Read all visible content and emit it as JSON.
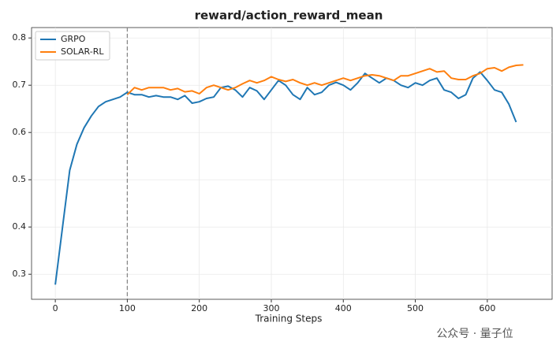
{
  "chart_data": {
    "type": "line",
    "title": "reward/action_reward_mean",
    "x_label": "Training Steps",
    "watermark": "公众号 · 量子位",
    "x": [
      0,
      10,
      20,
      30,
      40,
      50,
      60,
      70,
      80,
      90,
      100,
      110,
      120,
      130,
      140,
      150,
      160,
      170,
      180,
      190,
      200,
      210,
      220,
      230,
      240,
      250,
      260,
      270,
      280,
      290,
      300,
      310,
      320,
      330,
      340,
      350,
      360,
      370,
      380,
      390,
      400,
      410,
      420,
      430,
      440,
      450,
      460,
      470,
      480,
      490,
      500,
      510,
      520,
      530,
      540,
      550,
      560,
      570,
      580,
      590,
      600,
      610,
      620,
      630,
      640,
      650
    ],
    "series": [
      {
        "name": "GRPO",
        "color": "#1f77b4",
        "values": [
          0.278,
          0.4,
          0.52,
          0.575,
          0.61,
          0.635,
          0.655,
          0.665,
          0.67,
          0.675,
          0.685,
          0.68,
          0.68,
          0.675,
          0.678,
          0.675,
          0.675,
          0.67,
          0.678,
          0.662,
          0.665,
          0.672,
          0.675,
          0.695,
          0.698,
          0.69,
          0.675,
          0.695,
          0.688,
          0.67,
          0.69,
          0.71,
          0.7,
          0.68,
          0.67,
          0.695,
          0.68,
          0.685,
          0.7,
          0.706,
          0.7,
          0.69,
          0.705,
          0.725,
          0.715,
          0.705,
          0.715,
          0.71,
          0.7,
          0.695,
          0.705,
          0.7,
          0.71,
          0.715,
          0.69,
          0.685,
          0.672,
          0.68,
          0.715,
          0.728,
          0.71,
          0.69,
          0.685,
          0.66,
          0.622,
          null
        ]
      },
      {
        "name": "SOLAR-RL",
        "color": "#ff7f0e",
        "values": [
          null,
          null,
          null,
          null,
          null,
          null,
          null,
          null,
          null,
          null,
          0.68,
          0.695,
          0.69,
          0.695,
          0.695,
          0.695,
          0.69,
          0.693,
          0.686,
          0.688,
          0.682,
          0.695,
          0.7,
          0.695,
          0.69,
          0.695,
          0.703,
          0.71,
          0.705,
          0.71,
          0.718,
          0.712,
          0.708,
          0.712,
          0.705,
          0.7,
          0.705,
          0.7,
          0.705,
          0.71,
          0.715,
          0.71,
          0.715,
          0.72,
          0.722,
          0.72,
          0.715,
          0.71,
          0.72,
          0.72,
          0.725,
          0.73,
          0.735,
          0.728,
          0.73,
          0.715,
          0.712,
          0.712,
          0.72,
          0.725,
          0.735,
          0.737,
          0.73,
          0.738,
          0.742,
          0.743
        ]
      }
    ],
    "vline": 100,
    "xlim": [
      -33,
      690
    ],
    "ylim": [
      0.247,
      0.822
    ],
    "xticks": [
      0,
      100,
      200,
      300,
      400,
      500,
      600
    ],
    "yticks": [
      0.3,
      0.4,
      0.5,
      0.6,
      0.7,
      0.8
    ],
    "grid": true,
    "legend": "upper left"
  }
}
